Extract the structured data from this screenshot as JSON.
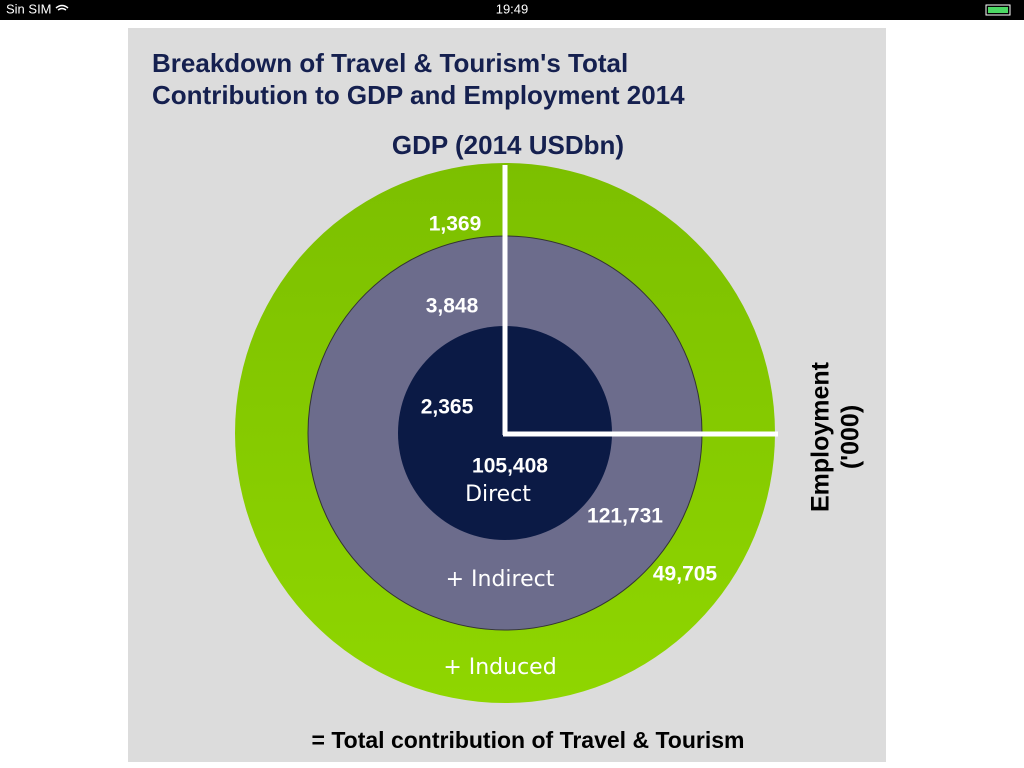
{
  "status_bar": {
    "carrier": "Sin SIM",
    "time": "19:49"
  },
  "infographic": {
    "title": [
      "Breakdown of Travel & Tourism's Total",
      "Contribution to GDP and Employment 2014"
    ],
    "gdp_label": "GDP (2014 USDbn)",
    "employment_label": [
      "Employment",
      "('000)"
    ],
    "rings": [
      {
        "name": "Direct",
        "gdp": "2,365",
        "employment": "105,408"
      },
      {
        "name": "+ Indirect",
        "gdp": "3,848",
        "employment": "121,731"
      },
      {
        "name": "+ Induced",
        "gdp": "1,369",
        "employment": "49,705"
      }
    ],
    "footer": "= Total contribution of Travel & Tourism"
  }
}
